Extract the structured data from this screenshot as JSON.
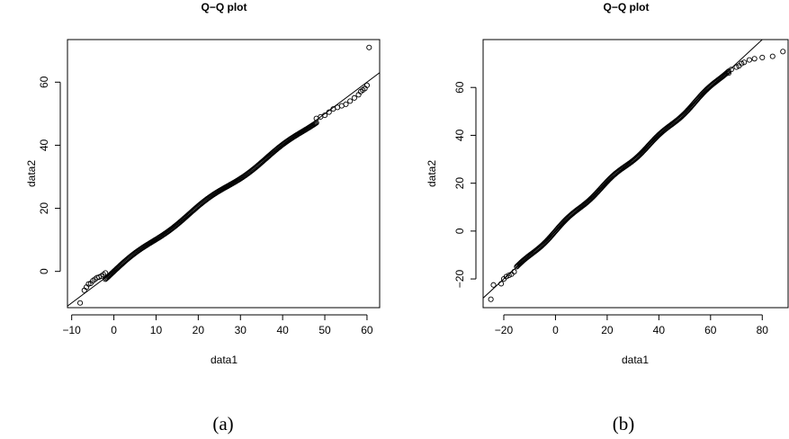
{
  "chart_data": [
    {
      "type": "scatter",
      "title": "Q−Q plot",
      "xlabel": "data1",
      "ylabel": "data2",
      "caption": "(a)",
      "xlim": [
        -11,
        63
      ],
      "ylim": [
        -11.5,
        73.5
      ],
      "xticks": [
        -10,
        0,
        10,
        20,
        30,
        40,
        50,
        60
      ],
      "xtick_labels": [
        "−10",
        "0",
        "10",
        "20",
        "30",
        "40",
        "50",
        "60"
      ],
      "yticks": [
        0,
        20,
        40,
        60
      ],
      "ytick_labels": [
        "0",
        "20",
        "40",
        "60"
      ],
      "reference_line": {
        "slope": 1.0,
        "intercept": 0.0
      },
      "quantile_range": [
        -2,
        48
      ],
      "points_lower": [
        [
          -8,
          -10
        ],
        [
          -7,
          -6
        ],
        [
          -6.5,
          -5
        ],
        [
          -6,
          -4
        ],
        [
          -5.5,
          -3.8
        ],
        [
          -5,
          -3
        ],
        [
          -4.5,
          -2.5
        ],
        [
          -4,
          -2
        ],
        [
          -3.5,
          -1.8
        ],
        [
          -3,
          -1.5
        ],
        [
          -2.5,
          -1
        ],
        [
          -2,
          -0.5
        ]
      ],
      "points_upper": [
        [
          48,
          48.5
        ],
        [
          49,
          49
        ],
        [
          50,
          49.5
        ],
        [
          51,
          50.5
        ],
        [
          52,
          51.5
        ],
        [
          53,
          52
        ],
        [
          54,
          52.5
        ],
        [
          55,
          53
        ],
        [
          56,
          54
        ],
        [
          57,
          55
        ],
        [
          58,
          56
        ],
        [
          58.5,
          57
        ],
        [
          59,
          57.5
        ],
        [
          59.5,
          58
        ],
        [
          60,
          59
        ],
        [
          60.5,
          71
        ]
      ]
    },
    {
      "type": "scatter",
      "title": "Q−Q plot",
      "xlabel": "data1",
      "ylabel": "data2",
      "caption": "(b)",
      "xlim": [
        -28,
        90
      ],
      "ylim": [
        -32,
        80
      ],
      "xticks": [
        -20,
        0,
        20,
        40,
        60,
        80
      ],
      "xtick_labels": [
        "−20",
        "0",
        "20",
        "40",
        "60",
        "80"
      ],
      "yticks": [
        -20,
        0,
        20,
        40,
        60
      ],
      "ytick_labels": [
        "−20",
        "0",
        "20",
        "40",
        "60"
      ],
      "reference_line": {
        "slope": 1.0,
        "intercept": 0.0
      },
      "quantile_range": [
        -15,
        67
      ],
      "points_lower": [
        [
          -25,
          -28.5
        ],
        [
          -24,
          -22.5
        ],
        [
          -21,
          -22
        ],
        [
          -20,
          -20
        ],
        [
          -19,
          -19
        ],
        [
          -18,
          -18.5
        ],
        [
          -17,
          -18
        ],
        [
          -16,
          -17
        ]
      ],
      "points_upper": [
        [
          67,
          66
        ],
        [
          68,
          67.5
        ],
        [
          70,
          68.5
        ],
        [
          71,
          69
        ],
        [
          72,
          70
        ],
        [
          73,
          70.5
        ],
        [
          75,
          71.5
        ],
        [
          77,
          72
        ],
        [
          80,
          72.5
        ],
        [
          84,
          73
        ],
        [
          88,
          75
        ]
      ]
    }
  ]
}
